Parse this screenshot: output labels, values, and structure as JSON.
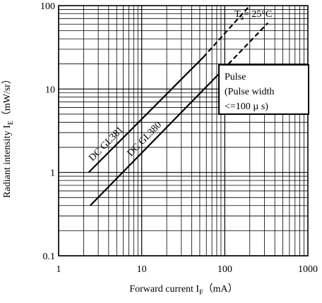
{
  "chart_data": {
    "type": "line",
    "x_scale": "log",
    "y_scale": "log",
    "xlim": [
      1,
      1000
    ],
    "ylim": [
      0.1,
      100
    ],
    "grid": true,
    "xlabel": {
      "prefix": "Forward current I",
      "subscript": "F",
      "suffix": "（mA）"
    },
    "ylabel": {
      "prefix": "Radiant intensity I",
      "subscript": "E",
      "suffix": "（mW/sr）"
    },
    "x_ticks": [
      {
        "value": 1,
        "label": "1"
      },
      {
        "value": 10,
        "label": "10"
      },
      {
        "value": 100,
        "label": "100"
      },
      {
        "value": 1000,
        "label": "1000"
      }
    ],
    "y_ticks": [
      {
        "value": 0.1,
        "label": "0.1"
      },
      {
        "value": 1,
        "label": "1"
      },
      {
        "value": 10,
        "label": "10"
      },
      {
        "value": 100,
        "label": "100"
      }
    ],
    "temperature_label": {
      "prefix": "T",
      "subscript": "a",
      "suffix": "= 25°C"
    },
    "pulse_box_lines": [
      "Pulse",
      "(Pulse width",
      "<=100 µ s)"
    ],
    "series": [
      {
        "name": "DC GL381",
        "label_text": "DC  GL381",
        "dc_segment": {
          "x": [
            2.3,
            55
          ],
          "y": [
            1.0,
            24
          ]
        },
        "pulse_segment": {
          "x": [
            55,
            200
          ],
          "y": [
            24,
            100
          ]
        }
      },
      {
        "name": "DC GL380",
        "label_text": "DC  GL380",
        "dc_segment": {
          "x": [
            2.4,
            95
          ],
          "y": [
            0.4,
            17
          ]
        },
        "pulse_segment": {
          "x": [
            95,
            330
          ],
          "y": [
            17,
            62
          ]
        }
      }
    ]
  }
}
